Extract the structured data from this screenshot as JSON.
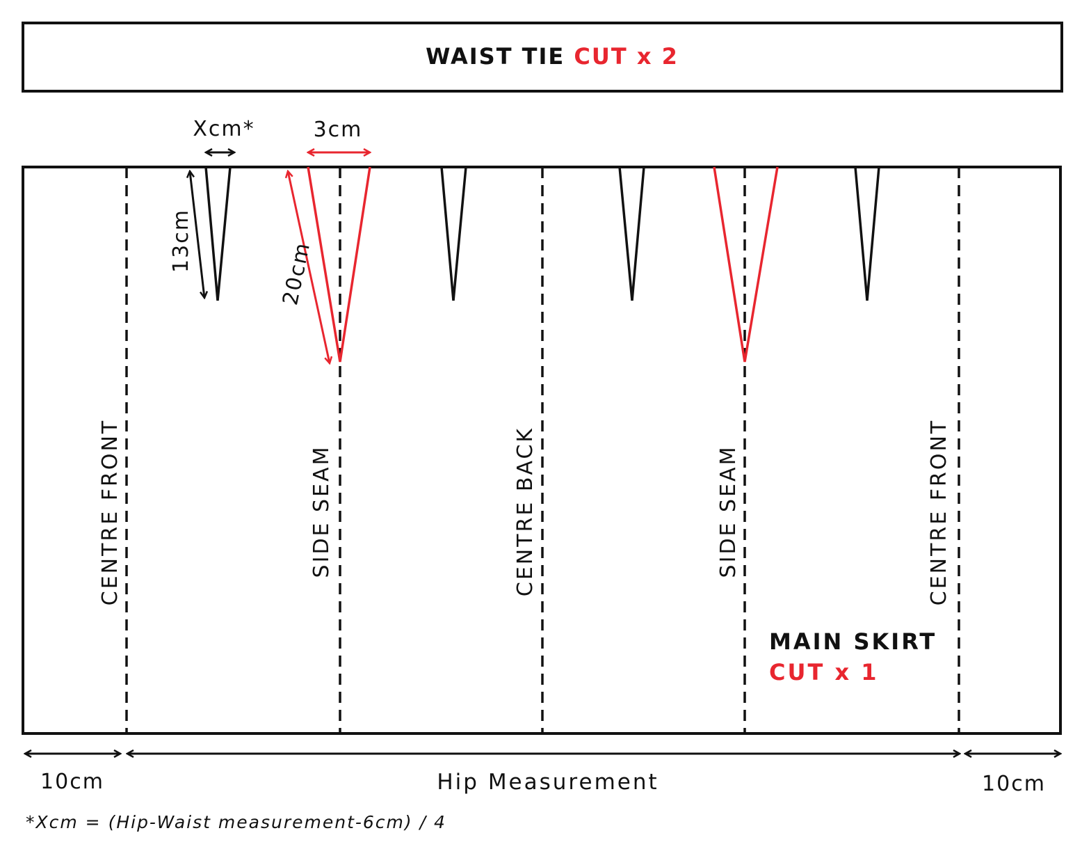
{
  "colors": {
    "ink": "#111111",
    "accent": "#e8262f"
  },
  "waist_tie": {
    "title": "WAIST TIE",
    "cut": "CUT x 2"
  },
  "main_skirt": {
    "title": "MAIN SKIRT",
    "cut": "CUT x 1"
  },
  "guide_lines": {
    "centre_front": "CENTRE FRONT",
    "side_seam": "SIDE SEAM",
    "centre_back": "CENTRE BACK"
  },
  "dart_labels": {
    "small_dart_width": "Xcm*",
    "small_dart_length": "13cm",
    "side_dart_width": "3cm",
    "side_dart_length": "20cm"
  },
  "bottom_measurements": {
    "left_extension": "10cm",
    "hip": "Hip Measurement",
    "right_extension": "10cm"
  },
  "footnote": "*Xcm = (Hip-Waist measurement-6cm) / 4"
}
